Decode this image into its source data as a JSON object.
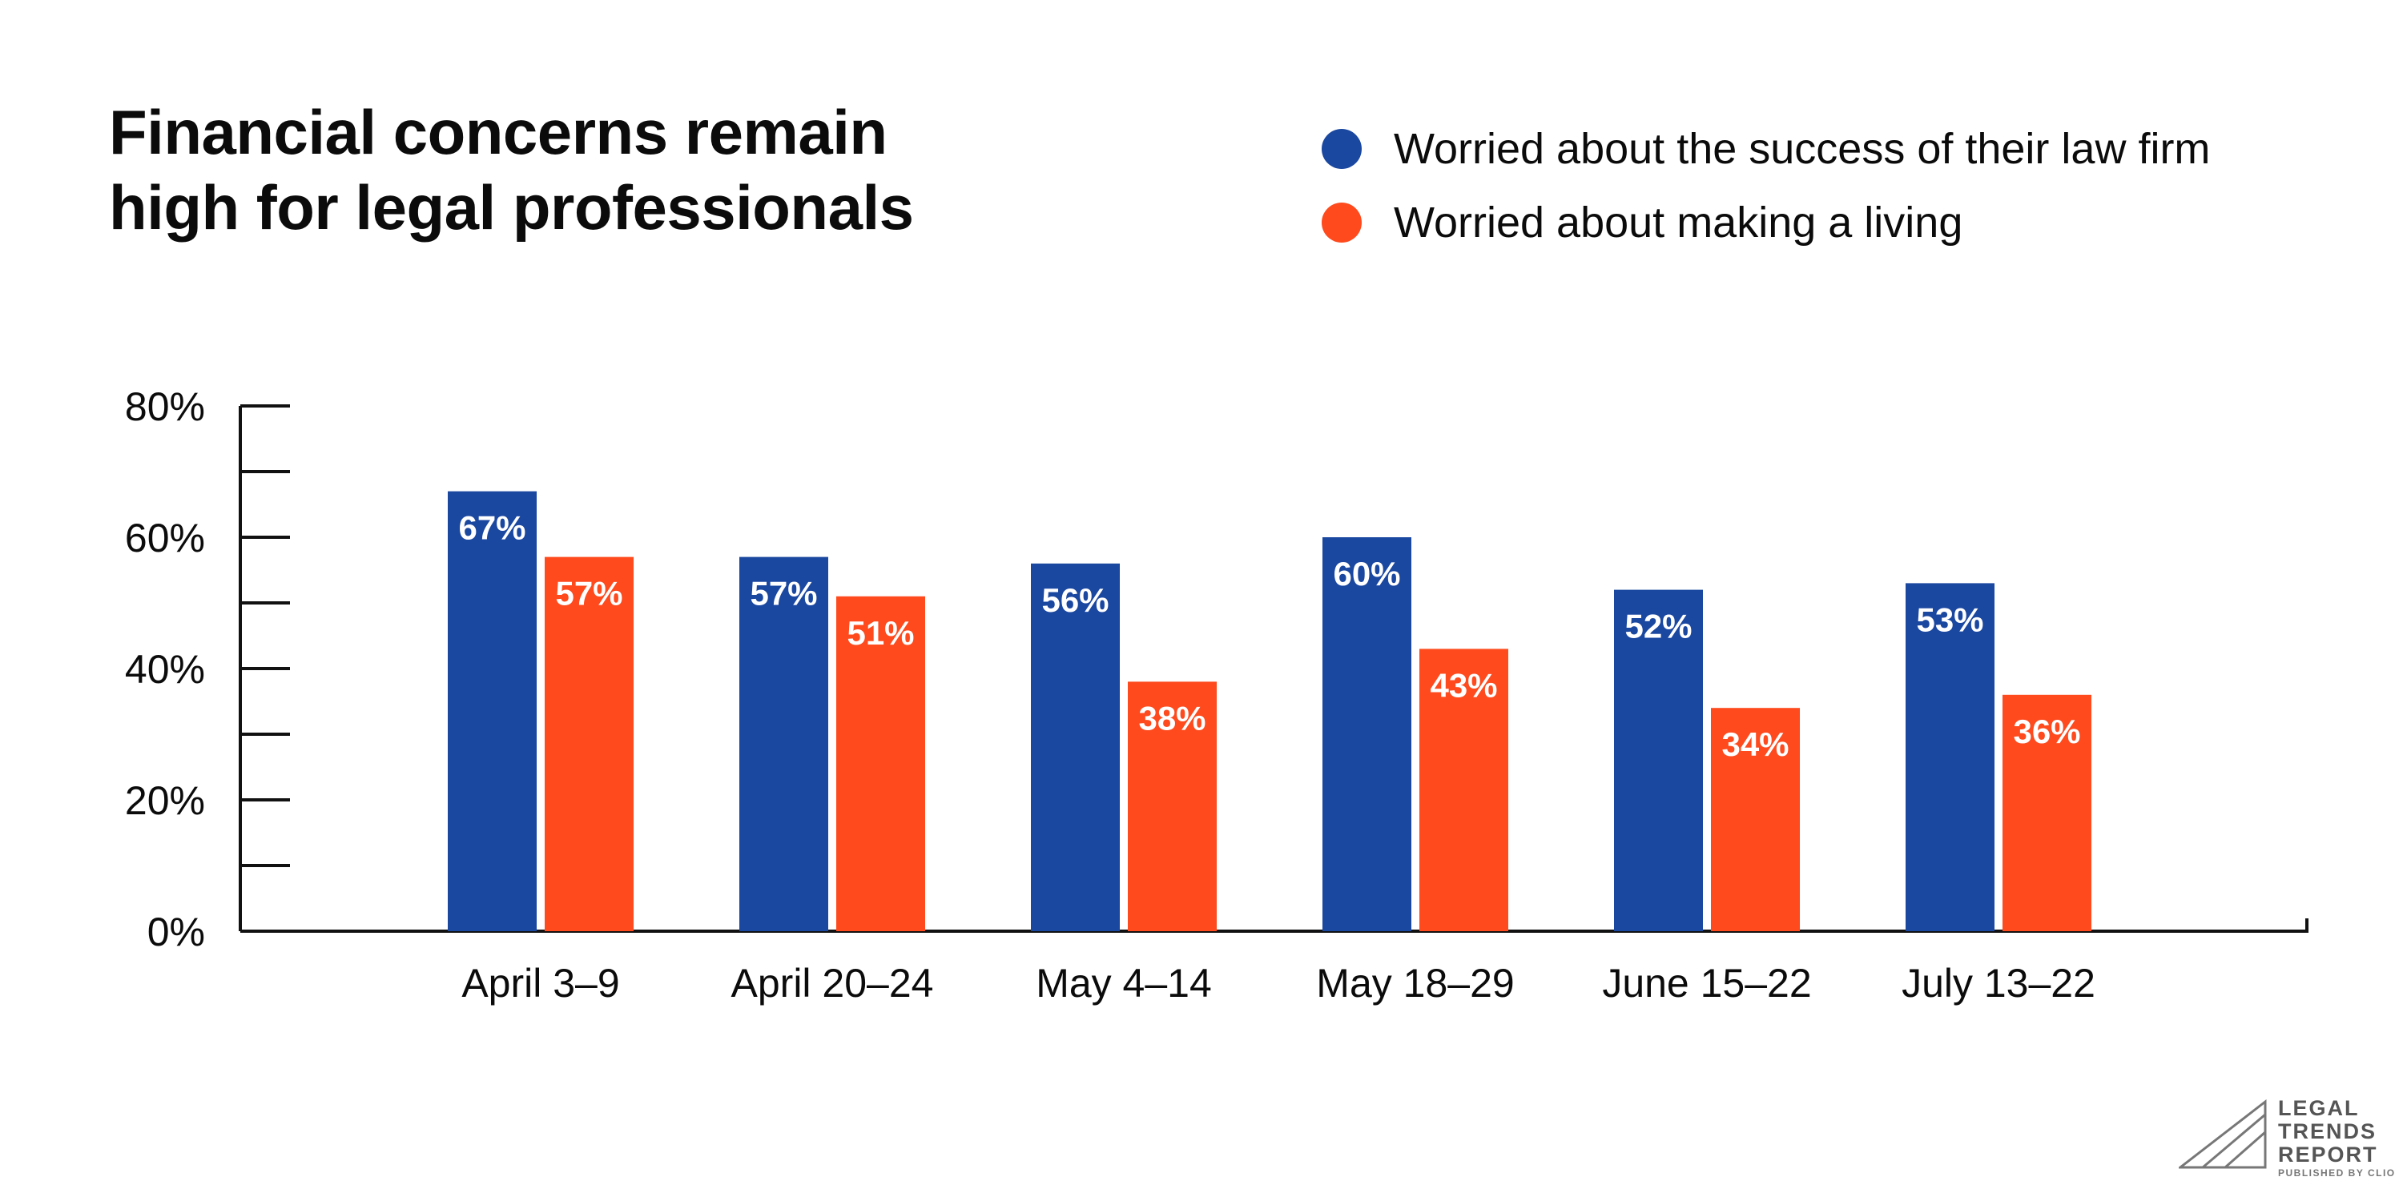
{
  "title_lines": [
    "Financial concerns remain",
    "high for legal professionals"
  ],
  "colors": {
    "blue": "#1a47a0",
    "orange": "#fe4a1d",
    "axis": "#111111"
  },
  "legend": [
    {
      "label": "Worried about the success of their law firm",
      "color": "#1a47a0"
    },
    {
      "label": "Worried about making a living",
      "color": "#fe4a1d"
    }
  ],
  "logo": {
    "lines": [
      "LEGAL",
      "TRENDS",
      "REPORT"
    ],
    "sub": "PUBLISHED BY CLIO"
  },
  "chart_data": {
    "type": "bar",
    "categories": [
      "April 3–9",
      "April 20–24",
      "May 4–14",
      "May 18–29",
      "June 15–22",
      "July 13–22"
    ],
    "series": [
      {
        "name": "Worried about the success of their law firm",
        "values": [
          67,
          57,
          56,
          60,
          52,
          53
        ],
        "color": "#1a47a0"
      },
      {
        "name": "Worried about making a living",
        "values": [
          57,
          51,
          38,
          43,
          34,
          36
        ],
        "color": "#fe4a1d"
      }
    ],
    "data_labels": [
      [
        "67%",
        "57%",
        "56%",
        "60%",
        "52%",
        "53%"
      ],
      [
        "57%",
        "51%",
        "38%",
        "43%",
        "34%",
        "36%"
      ]
    ],
    "yticks": [
      0,
      20,
      40,
      60,
      80
    ],
    "ytick_labels": [
      "0%",
      "20%",
      "40%",
      "60%",
      "80%"
    ],
    "ylim": [
      0,
      80
    ],
    "xlabel": "",
    "ylabel": "",
    "grid": false,
    "legend_position": "top-right"
  }
}
